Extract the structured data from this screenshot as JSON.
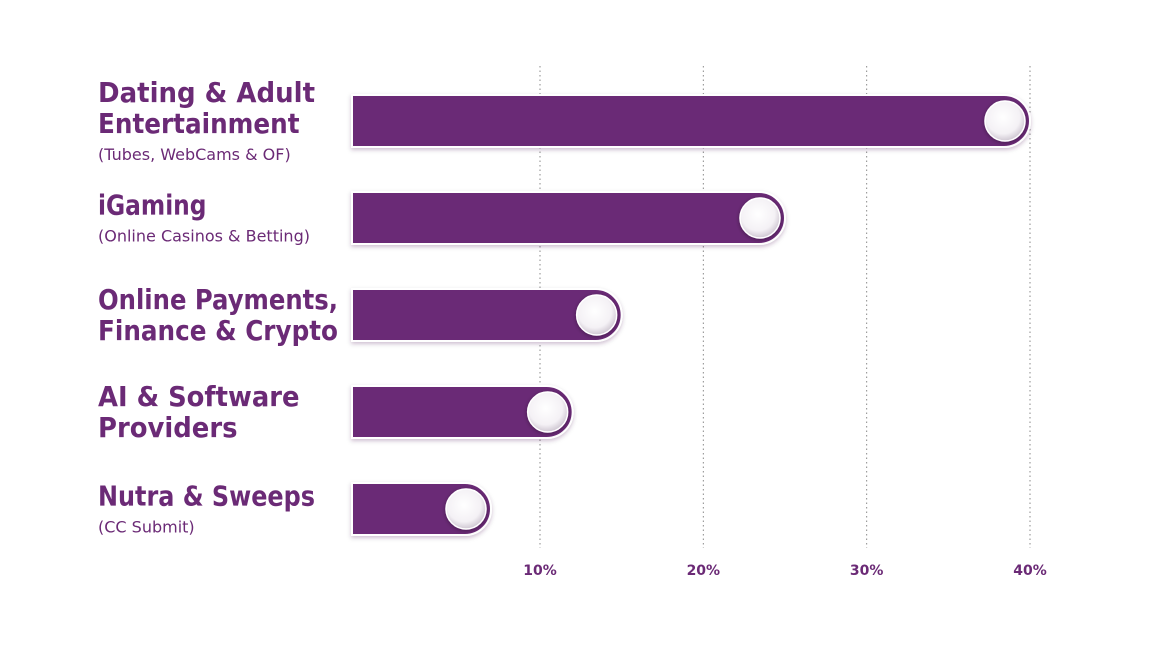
{
  "chart_data": {
    "type": "bar",
    "orientation": "horizontal",
    "categories": [
      {
        "title": [
          "Dating & Adult",
          "Entertainment"
        ],
        "subtitle": "(Tubes, WebCams & OF)"
      },
      {
        "title": [
          "iGaming"
        ],
        "subtitle": "(Online Casinos & Betting)"
      },
      {
        "title": [
          "Online Payments,",
          "Finance & Crypto"
        ],
        "subtitle": ""
      },
      {
        "title": [
          "AI & Software",
          "Providers"
        ],
        "subtitle": ""
      },
      {
        "title": [
          "Nutra & Sweeps"
        ],
        "subtitle": "(CC Submit)"
      }
    ],
    "values": [
      40,
      25,
      15,
      12,
      7
    ],
    "xlim": [
      -1.5,
      41
    ],
    "ticks": [
      10,
      20,
      30,
      40
    ],
    "tick_labels": [
      "10%",
      "20%",
      "30%",
      "40%"
    ],
    "grid": true,
    "bar_color": "#6b2a76",
    "label_color": "#6b2a76",
    "knob_color": "#ffffff"
  }
}
